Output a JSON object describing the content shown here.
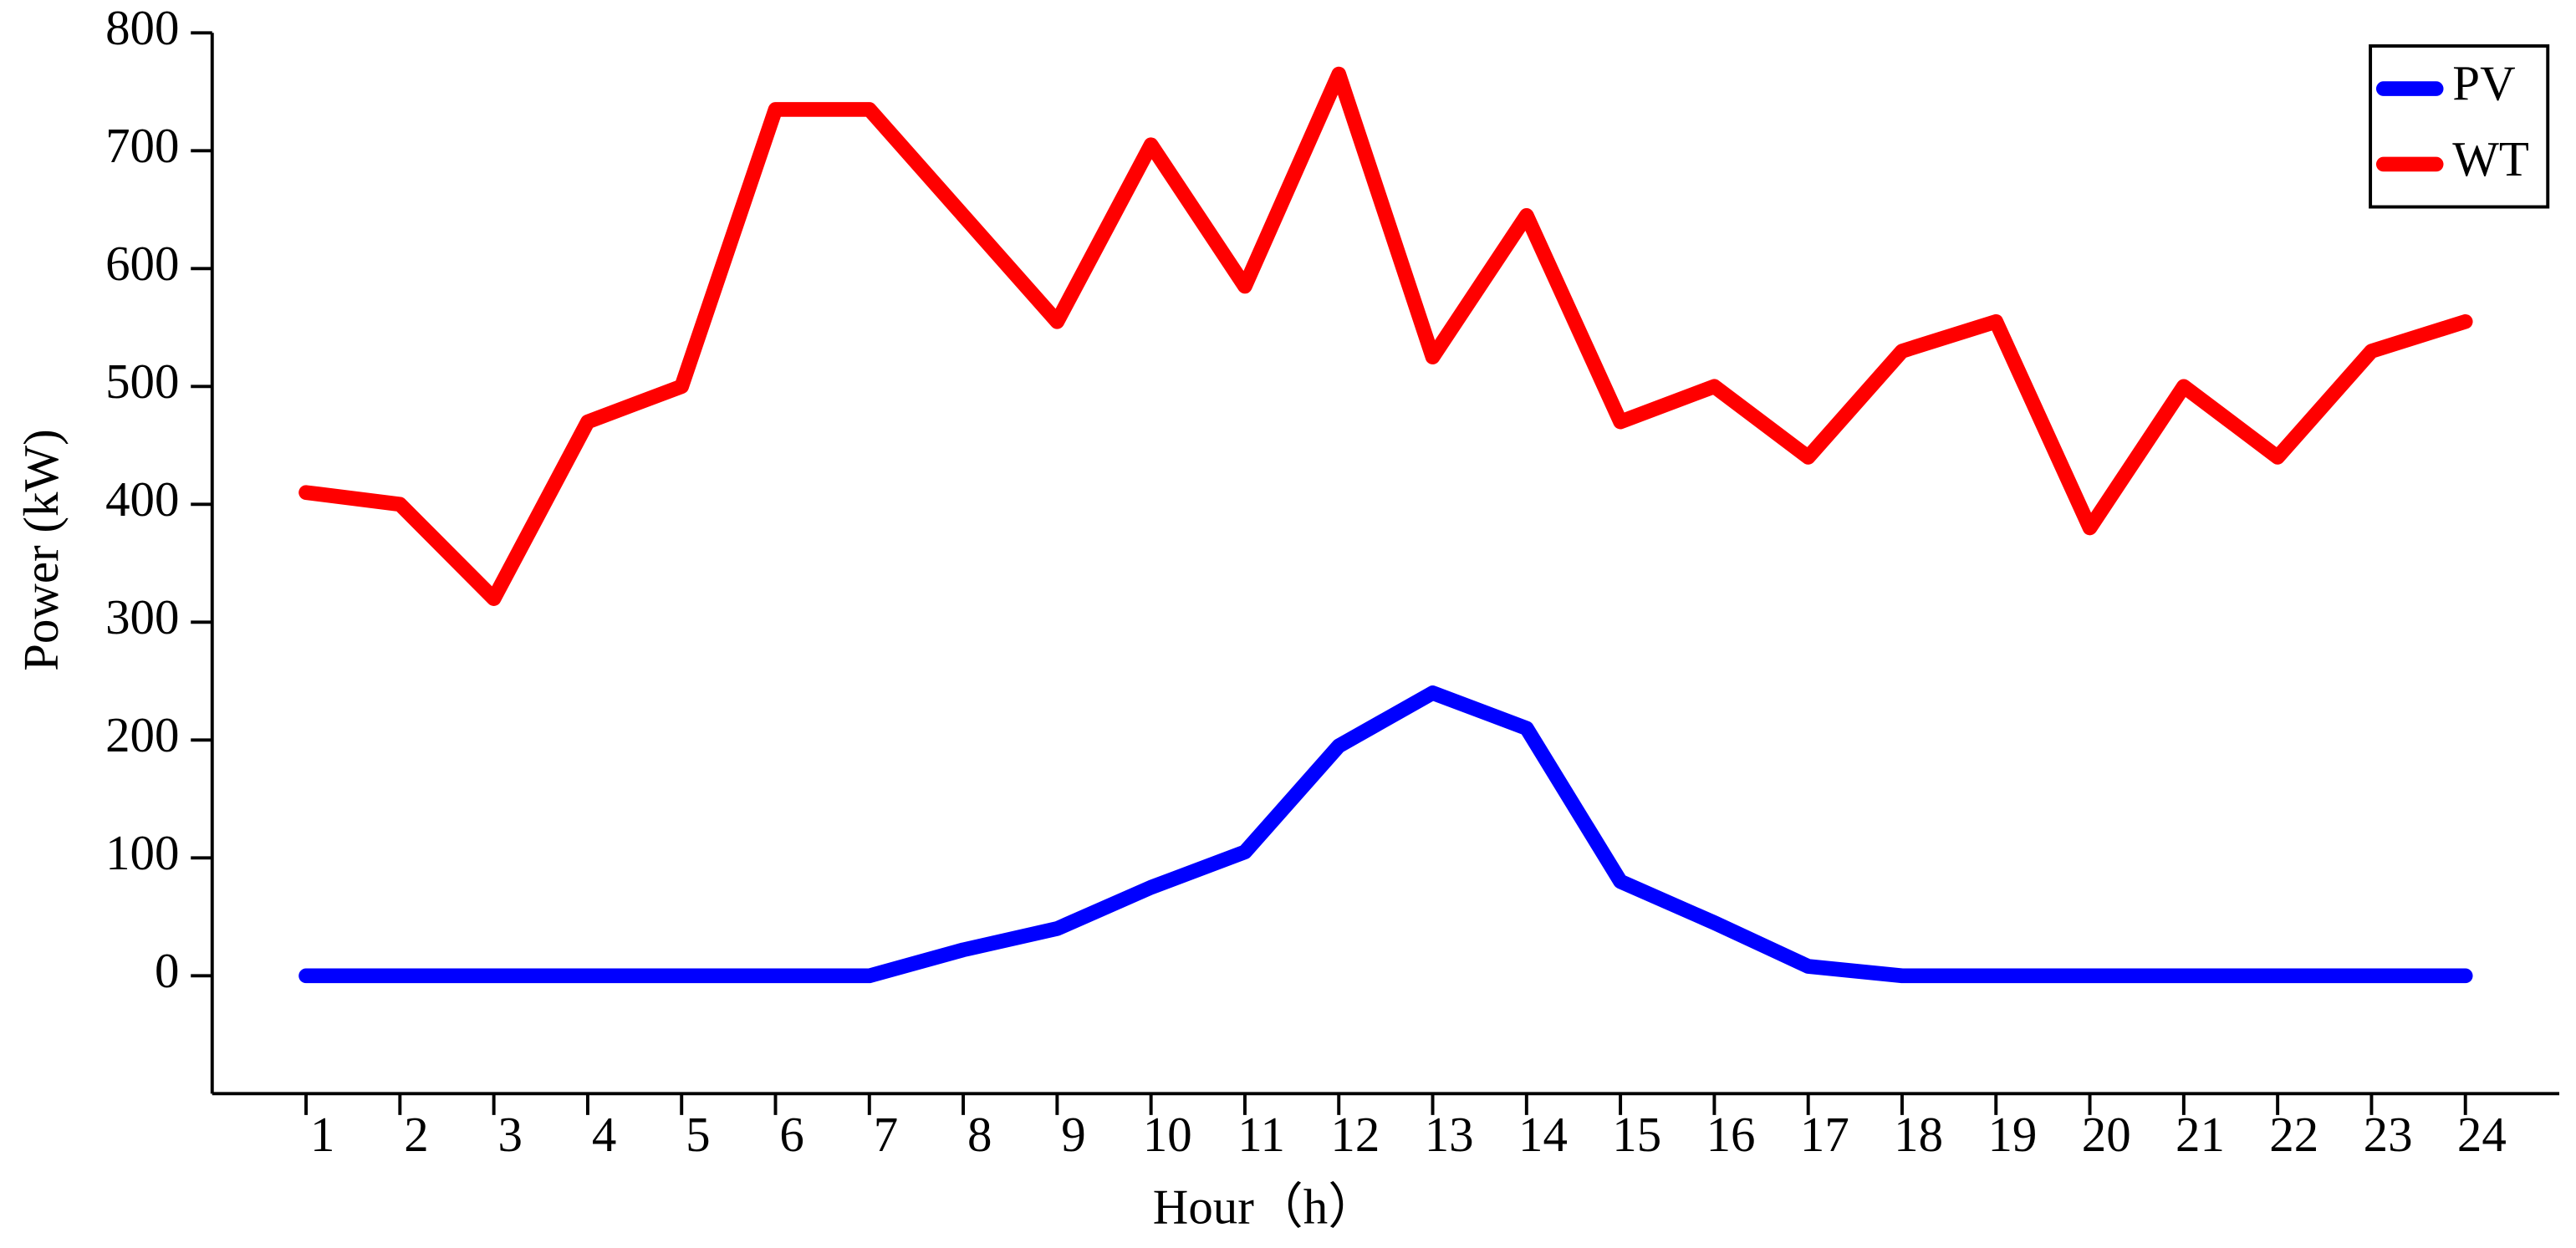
{
  "chart_data": {
    "type": "line",
    "x_label": "Hour（h）",
    "y_label": "Power (kW)",
    "x": [
      1,
      2,
      3,
      4,
      5,
      6,
      7,
      8,
      9,
      10,
      11,
      12,
      13,
      14,
      15,
      16,
      17,
      18,
      19,
      20,
      21,
      22,
      23,
      24
    ],
    "series": [
      {
        "name": "PV",
        "color": "#0000ff",
        "values": [
          0,
          0,
          0,
          0,
          0,
          0,
          0,
          22,
          40,
          75,
          105,
          195,
          240,
          210,
          80,
          45,
          8,
          0,
          0,
          0,
          0,
          0,
          0,
          0
        ]
      },
      {
        "name": "WT",
        "color": "#ff0000",
        "values": [
          410,
          400,
          320,
          470,
          500,
          735,
          735,
          645,
          555,
          705,
          585,
          765,
          525,
          645,
          470,
          500,
          440,
          530,
          555,
          380,
          500,
          440,
          530,
          555
        ]
      }
    ],
    "xlim": [
      0,
      25
    ],
    "xticks": [
      1,
      2,
      3,
      4,
      5,
      6,
      7,
      8,
      9,
      10,
      11,
      12,
      13,
      14,
      15,
      16,
      17,
      18,
      19,
      20,
      21,
      22,
      23,
      24
    ],
    "ylim": [
      -100,
      800
    ],
    "yticks": [
      0,
      100,
      200,
      300,
      400,
      500,
      600,
      700,
      800
    ],
    "legend": "upper right",
    "grid": false
  }
}
